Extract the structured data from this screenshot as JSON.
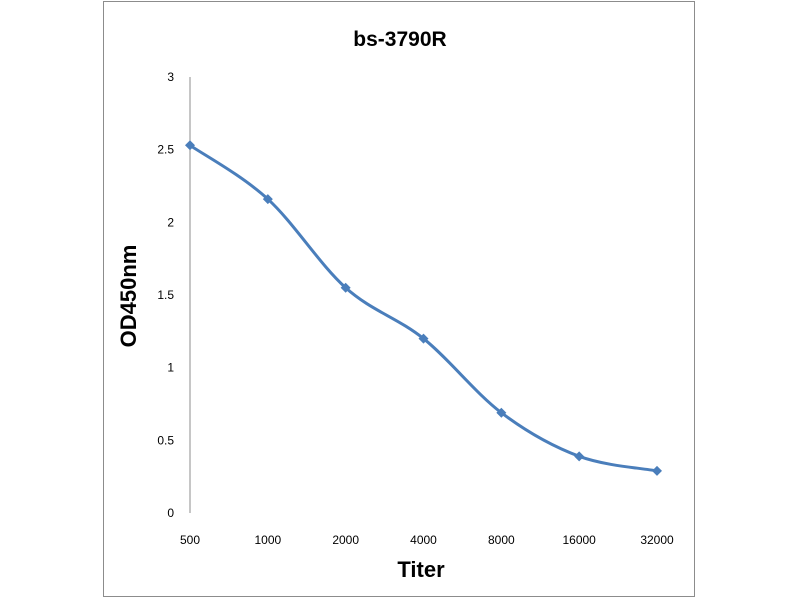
{
  "chart_data": {
    "type": "line",
    "title": "bs-3790R",
    "xlabel": "Titer",
    "ylabel": "OD450nm",
    "categories": [
      "500",
      "1000",
      "2000",
      "4000",
      "8000",
      "16000",
      "32000"
    ],
    "series": [
      {
        "values": [
          2.53,
          2.16,
          1.55,
          1.2,
          0.69,
          0.39,
          0.29
        ]
      }
    ],
    "ylim": [
      0,
      3
    ],
    "yticks": [
      "0",
      "0.5",
      "1",
      "1.5",
      "2",
      "2.5",
      "3"
    ],
    "grid": false,
    "legend": "none",
    "smooth": true,
    "line_color": "#4a7ebb",
    "marker": "diamond"
  }
}
